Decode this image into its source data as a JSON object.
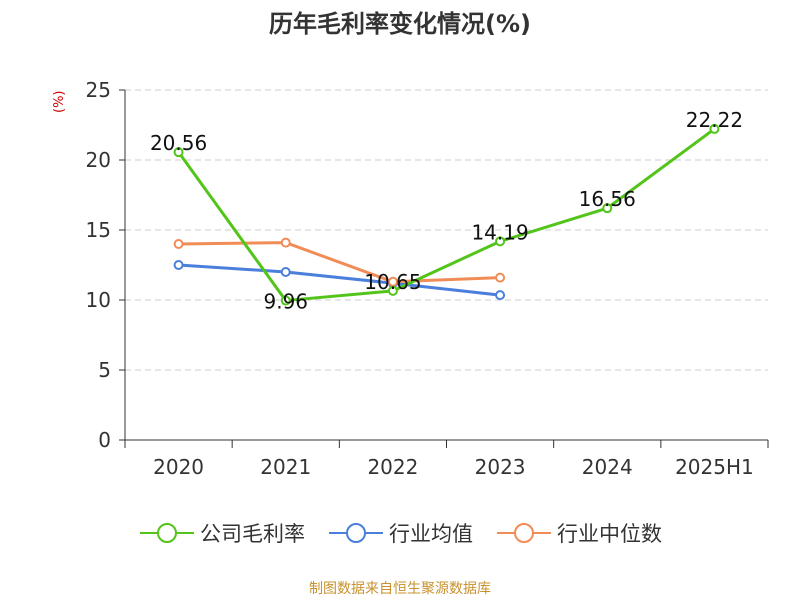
{
  "chart_data": {
    "type": "line",
    "title": "历年毛利率变化情况(%)",
    "unit_label": "(%)",
    "categories": [
      "2020",
      "2021",
      "2022",
      "2023",
      "2024",
      "2025H1"
    ],
    "ylim": [
      0,
      25
    ],
    "yticks": [
      0,
      5,
      10,
      15,
      20,
      25
    ],
    "grid": true,
    "legend_position": "bottom",
    "series": [
      {
        "name": "公司毛利率",
        "color": "#52c41a",
        "values": [
          20.56,
          9.96,
          10.65,
          14.19,
          16.56,
          22.22
        ],
        "labels": [
          "20.56",
          "9.96",
          "10.65",
          "14.19",
          "16.56",
          "22.22"
        ]
      },
      {
        "name": "行业均值",
        "color": "#4a7fdc",
        "values": [
          12.5,
          12.0,
          11.2,
          10.35,
          null,
          null
        ]
      },
      {
        "name": "行业中位数",
        "color": "#f28c56",
        "values": [
          14.0,
          14.1,
          11.3,
          11.6,
          null,
          null
        ]
      }
    ]
  },
  "footer": "制图数据来自恒生聚源数据库"
}
